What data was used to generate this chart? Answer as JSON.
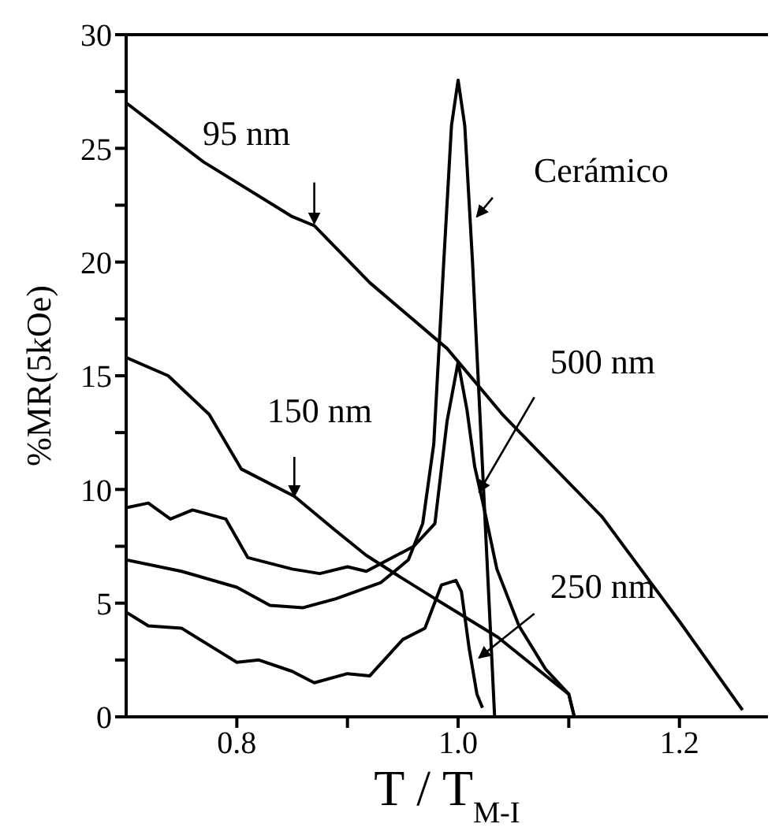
{
  "chart_data": {
    "type": "line",
    "xlabel": "T / T$_{M-I}$",
    "ylabel": "%MR(5kOe)",
    "xlim": [
      0.7,
      1.28
    ],
    "ylim": [
      0,
      30
    ],
    "xticks": [
      0.8,
      {
        "value": 0.9,
        "label": null
      },
      {
        "value": 1,
        "label": "1.0"
      },
      {
        "value": 1.1,
        "label": null
      },
      1.2
    ],
    "yticks": [
      0,
      {
        "value": 2.5,
        "label": null
      },
      5,
      {
        "value": 7.5,
        "label": null
      },
      10,
      {
        "value": 12.5,
        "label": null
      },
      15,
      {
        "value": 17.5,
        "label": null
      },
      20,
      {
        "value": 22.5,
        "label": null
      },
      25,
      {
        "value": 27.5,
        "label": null
      },
      30
    ],
    "grid": false,
    "legend": false,
    "marker": "none",
    "line_style": "solid",
    "series": [
      {
        "color": "#000000",
        "x": [
          0.7,
          0.77,
          0.85,
          0.87,
          0.92,
          0.99,
          1.04,
          1.13,
          1.2,
          1.257
        ],
        "values": [
          27,
          24.4,
          22,
          21.6,
          19.1,
          16.2,
          13.3,
          8.8,
          4.2,
          0.3
        ]
      },
      {
        "color": "#000000",
        "x": [
          0.7,
          0.738,
          0.775,
          0.804,
          0.852,
          0.889,
          0.917,
          0.946,
          0.979,
          1.036,
          1.059,
          1.087,
          1.1,
          1.105
        ],
        "values": [
          15.8,
          15,
          13.3,
          10.9,
          9.7,
          8.2,
          7.1,
          6.2,
          5.2,
          3.5,
          2.6,
          1.5,
          1.0,
          0
        ]
      },
      {
        "color": "#000000",
        "x": [
          0.7,
          0.72,
          0.74,
          0.76,
          0.79,
          0.81,
          0.85,
          0.875,
          0.9,
          0.917,
          0.96,
          0.979,
          0.99,
          1,
          1.008,
          1.015,
          1.022,
          1.035,
          1.055,
          1.079,
          1.1,
          1.105
        ],
        "values": [
          9.2,
          9.4,
          8.7,
          9.1,
          8.7,
          7,
          6.5,
          6.3,
          6.6,
          6.4,
          7.5,
          8.5,
          13,
          15.6,
          13.5,
          11,
          9.5,
          6.5,
          4,
          2.1,
          1,
          0
        ]
      },
      {
        "color": "#000000",
        "x": [
          0.7,
          0.75,
          0.8,
          0.83,
          0.86,
          0.89,
          0.93,
          0.955,
          0.968,
          0.978,
          0.987,
          0.994,
          1,
          1.006,
          1.013,
          1.02,
          1.027,
          1.033
        ],
        "values": [
          6.9,
          6.4,
          5.7,
          4.9,
          4.8,
          5.2,
          5.9,
          6.9,
          8.5,
          12,
          20,
          26,
          28,
          26,
          20,
          13,
          6,
          0
        ]
      },
      {
        "color": "#000000",
        "x": [
          0.7,
          0.72,
          0.75,
          0.78,
          0.8,
          0.82,
          0.85,
          0.87,
          0.9,
          0.92,
          0.95,
          0.97,
          0.985,
          0.998,
          1.003,
          1.01,
          1.017,
          1.022
        ],
        "values": [
          4.6,
          4,
          3.9,
          3,
          2.4,
          2.5,
          2,
          1.5,
          1.9,
          1.8,
          3.4,
          3.9,
          5.8,
          6,
          5.5,
          3,
          1,
          0.4
        ]
      }
    ],
    "annotations": [
      {
        "text": "95 nm",
        "x": 0.87,
        "y": 21.7
      },
      {
        "text": "Cerámico",
        "x": 1.017,
        "y": 22
      },
      {
        "text": "150 nm",
        "x": 0.852,
        "y": 9.7
      },
      {
        "text": "500 nm",
        "x": 1.019,
        "y": 9.9
      },
      {
        "text": "250 nm",
        "x": 1.019,
        "y": 2.6
      }
    ]
  }
}
